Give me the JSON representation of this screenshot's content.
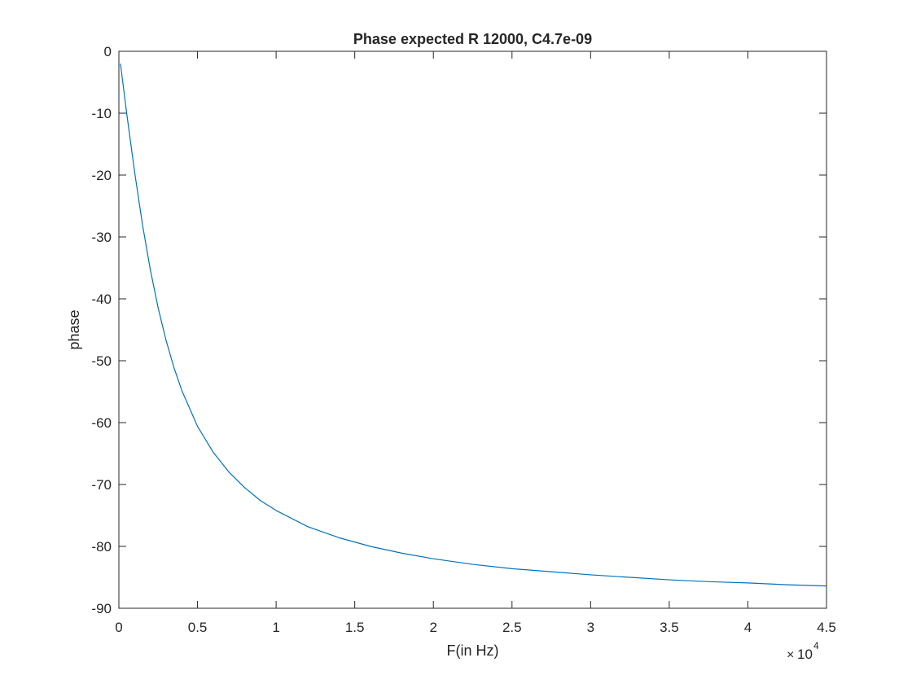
{
  "chart_data": {
    "type": "line",
    "title": "Phase expected R 12000, C4.7e-09",
    "xlabel": "F(in Hz)",
    "ylabel": "phase",
    "x_exponent_label": "10",
    "x_exponent_power": "4",
    "xlim": [
      0,
      45000
    ],
    "ylim": [
      -90,
      0
    ],
    "x_ticks": [
      0,
      5000,
      10000,
      15000,
      20000,
      25000,
      30000,
      35000,
      40000,
      45000
    ],
    "x_tick_labels": [
      "0",
      "0.5",
      "1",
      "1.5",
      "2",
      "2.5",
      "3",
      "3.5",
      "4",
      "4.5"
    ],
    "y_ticks": [
      0,
      -10,
      -20,
      -30,
      -40,
      -50,
      -60,
      -70,
      -80,
      -90
    ],
    "y_tick_labels": [
      "0",
      "-10",
      "-20",
      "-30",
      "-40",
      "-50",
      "-60",
      "-70",
      "-80",
      "-90"
    ],
    "grid": false,
    "series": [
      {
        "color": "#0072bd",
        "x": [
          100,
          500,
          1000,
          1500,
          2000,
          2500,
          3000,
          3500,
          4000,
          5000,
          6000,
          7000,
          8000,
          9000,
          10000,
          12000,
          14000,
          16000,
          18000,
          20000,
          22500,
          25000,
          27500,
          30000,
          32500,
          35000,
          37500,
          40000,
          42500,
          45000
        ],
        "y": [
          -2.0,
          -10.1,
          -19.5,
          -28.0,
          -35.3,
          -41.5,
          -46.7,
          -51.1,
          -54.8,
          -60.6,
          -64.8,
          -68.0,
          -70.5,
          -72.6,
          -74.2,
          -76.8,
          -78.6,
          -80.0,
          -81.1,
          -82.0,
          -82.9,
          -83.6,
          -84.1,
          -84.6,
          -85.0,
          -85.4,
          -85.7,
          -85.9,
          -86.2,
          -86.4
        ]
      }
    ]
  }
}
